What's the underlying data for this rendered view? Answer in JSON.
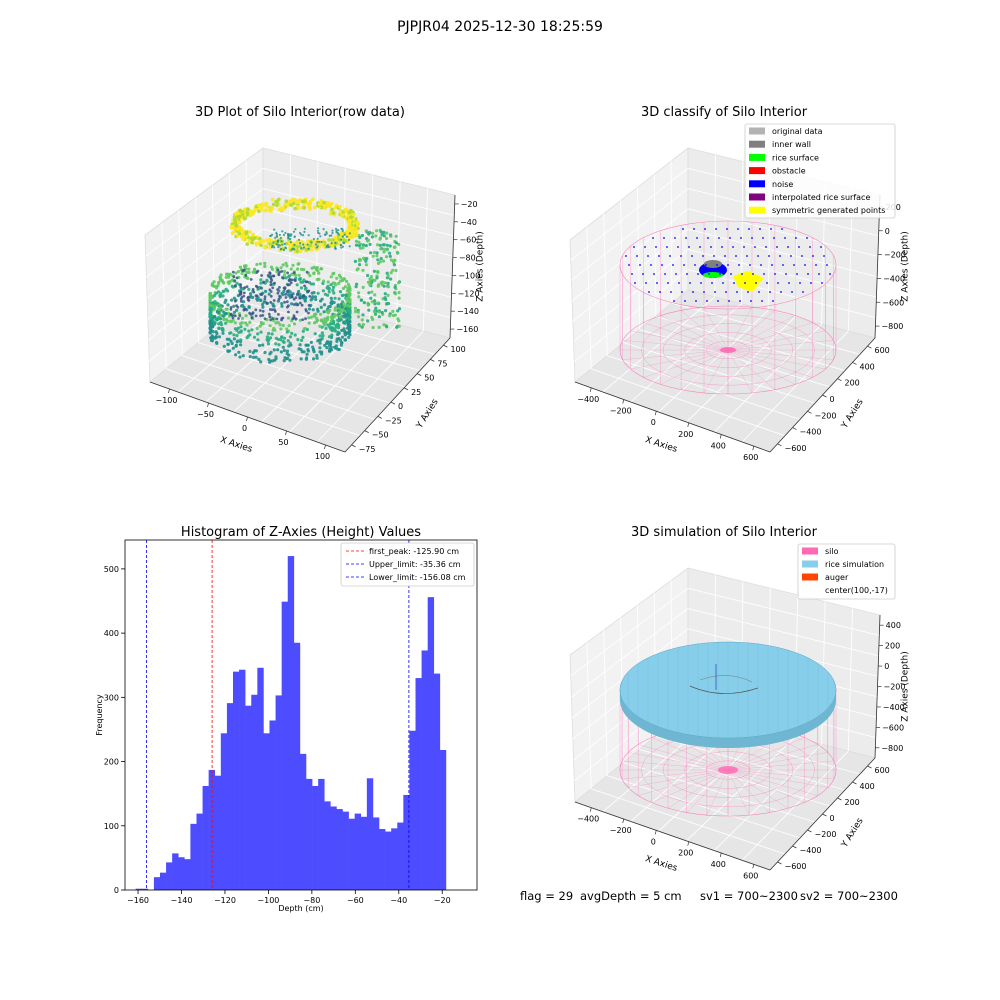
{
  "figure": {
    "suptitle": "PJPJR04 2025-12-30 18:25:59",
    "footer": {
      "flag": "flag = 29",
      "avg_depth": "avgDepth = 5 cm",
      "sv1": "sv1 = 700~2300",
      "sv2": "sv2 = 700~2300"
    }
  },
  "colors": {
    "histogram_bar": "#4d4dff",
    "first_peak_line": "#ff0000",
    "limit_line": "#0000ff",
    "silo_wire": "#ff69b4",
    "rice_simulation": "#87ceeb",
    "auger": "#ff4500",
    "original_data": "#b3b3b3",
    "inner_wall": "#808080",
    "rice_surface": "#00ff00",
    "obstacle": "#ff0000",
    "noise": "#0000ff",
    "interpolated_rice_surface": "#800080",
    "symmetric_generated_points": "#ffff00"
  },
  "chart_data": [
    {
      "type": "scatter",
      "title": "3D Plot of Silo Interior(row data)",
      "xlabel": "X Axies",
      "ylabel": "Y Axies",
      "zlabel": "Z Axies (Depth)",
      "x_ticks": [
        "−100",
        "−50",
        "0",
        "50",
        "100"
      ],
      "y_ticks": [
        "−75",
        "−50",
        "−25",
        "0",
        "25",
        "50",
        "75",
        "100"
      ],
      "z_ticks": [
        "−20",
        "−40",
        "−60",
        "−80",
        "−100",
        "−120",
        "−140",
        "−160"
      ],
      "colormap": "viridis"
    },
    {
      "type": "scatter",
      "title": "3D classify of Silo Interior",
      "xlabel": "X Axies",
      "ylabel": "Y Axies",
      "zlabel": "Z Axies (Depth)",
      "x_ticks": [
        "−400",
        "−200",
        "0",
        "200",
        "400",
        "600"
      ],
      "y_ticks": [
        "−600",
        "−400",
        "−200",
        "0",
        "200",
        "400",
        "600"
      ],
      "z_ticks": [
        "200",
        "0",
        "−200",
        "−400",
        "−600",
        "−800"
      ],
      "z_top_tick_partial": "00",
      "legend": [
        "original data",
        "inner wall",
        "rice surface",
        "obstacle",
        "noise",
        "interpolated rice surface",
        "symmetric generated points"
      ],
      "legend_loc": "upper right"
    },
    {
      "type": "bar",
      "title": "Histogram of Z-Axies (Height) Values",
      "xlabel": "Depth (cm)",
      "ylabel": "Frequency",
      "xlim": [
        -166,
        -4
      ],
      "ylim": [
        0,
        545
      ],
      "x_ticks": [
        -160,
        -140,
        -120,
        -100,
        -80,
        -60,
        -40,
        -20
      ],
      "x_tick_labels": [
        "−160",
        "−140",
        "−120",
        "−100",
        "−80",
        "−60",
        "−40",
        "−20"
      ],
      "y_ticks": [
        0,
        100,
        200,
        300,
        400,
        500
      ],
      "y_tick_labels": [
        "0",
        "100",
        "200",
        "300",
        "400",
        "500"
      ],
      "bin_start": -161.1,
      "bin_width": 2.8,
      "values": [
        2,
        2,
        0,
        20,
        27,
        43,
        57,
        51,
        48,
        103,
        119,
        162,
        187,
        178,
        244,
        291,
        340,
        343,
        287,
        304,
        346,
        244,
        264,
        303,
        449,
        520,
        385,
        212,
        173,
        162,
        173,
        138,
        130,
        126,
        122,
        111,
        119,
        114,
        174,
        113,
        95,
        91,
        96,
        105,
        148,
        248,
        330,
        373,
        456,
        337,
        218
      ],
      "vlines": [
        {
          "x": -125.9,
          "kind": "first_peak",
          "label": "first_peak: -125.90 cm"
        },
        {
          "x": -35.36,
          "kind": "limit",
          "label": "Upper_limit: -35.36 cm"
        },
        {
          "x": -156.08,
          "kind": "limit",
          "label": "Lower_limit: -156.08 cm"
        }
      ],
      "legend_loc": "upper right"
    },
    {
      "type": "scatter",
      "title": "3D simulation of Silo Interior",
      "xlabel": "X Axies",
      "ylabel": "Y Axies",
      "zlabel": "Z Axies (Depth)",
      "x_ticks": [
        "−400",
        "−200",
        "0",
        "200",
        "400",
        "600"
      ],
      "y_ticks": [
        "−600",
        "−400",
        "−200",
        "0",
        "200",
        "400",
        "600"
      ],
      "z_ticks": [
        "400",
        "200",
        "0",
        "−200",
        "−400",
        "−600",
        "−800"
      ],
      "legend": [
        "silo",
        "rice simulation",
        "auger",
        "center(100,-17)"
      ],
      "legend_loc": "upper right"
    }
  ]
}
